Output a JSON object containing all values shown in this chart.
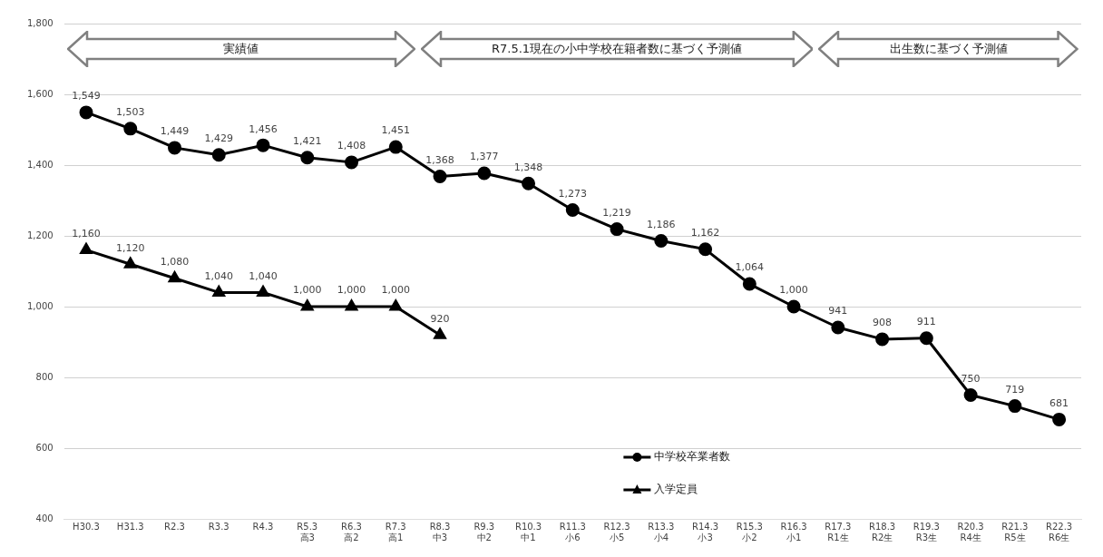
{
  "chart_data": {
    "type": "line",
    "categories": [
      "H30.3",
      "H31.3",
      "R2.3",
      "R3.3",
      "R4.3",
      "R5.3\n高3",
      "R6.3\n高2",
      "R7.3\n高1",
      "R8.3\n中3",
      "R9.3\n中2",
      "R10.3\n中1",
      "R11.3\n小6",
      "R12.3\n小5",
      "R13.3\n小4",
      "R14.3\n小3",
      "R15.3\n小2",
      "R16.3\n小1",
      "R17.3\nR1生",
      "R18.3\nR2生",
      "R19.3\nR3生",
      "R20.3\nR4生",
      "R21.3\nR5生",
      "R22.3\nR6生"
    ],
    "series": [
      {
        "name": "中学校卒業者数",
        "color": "#000000",
        "marker": "circle",
        "values": [
          1549,
          1503,
          1449,
          1429,
          1456,
          1421,
          1408,
          1451,
          1368,
          1377,
          1348,
          1273,
          1219,
          1186,
          1162,
          1064,
          1000,
          941,
          908,
          911,
          750,
          719,
          681
        ],
        "value_labels": [
          "1,549",
          "1,503",
          "1,449",
          "1,429",
          "1,456",
          "1,421",
          "1,408",
          "1,451",
          "1,368",
          "1,377",
          "1,348",
          "1,273",
          "1,219",
          "1,186",
          "1,162",
          "1,064",
          "1,000",
          "941",
          "908",
          "911",
          "750",
          "719",
          "681"
        ]
      },
      {
        "name": "入学定員",
        "color": "#000000",
        "marker": "triangle",
        "values": [
          1160,
          1120,
          1080,
          1040,
          1040,
          1000,
          1000,
          1000,
          920,
          null,
          null,
          null,
          null,
          null,
          null,
          null,
          null,
          null,
          null,
          null,
          null,
          null,
          null
        ],
        "value_labels": [
          "1,160",
          "1,120",
          "1,080",
          "1,040",
          "1,040",
          "1,000",
          "1,000",
          "1,000",
          "920",
          null,
          null,
          null,
          null,
          null,
          null,
          null,
          null,
          null,
          null,
          null,
          null,
          null,
          null
        ]
      }
    ],
    "ylim": [
      400,
      1800
    ],
    "yticks": [
      {
        "value": 400,
        "label": "400"
      },
      {
        "value": 600,
        "label": "600"
      },
      {
        "value": 800,
        "label": "800"
      },
      {
        "value": 1000,
        "label": "1,000"
      },
      {
        "value": 1200,
        "label": "1,200"
      },
      {
        "value": 1400,
        "label": "1,400"
      },
      {
        "value": 1600,
        "label": "1,600"
      },
      {
        "value": 1800,
        "label": "1,800"
      }
    ],
    "grid": "y",
    "legend": "bottom",
    "annotations": [
      "実績値",
      "R7.5.1現在の小中学校在籍者数に基づく予測値",
      "出生数に基づく予測値"
    ]
  }
}
